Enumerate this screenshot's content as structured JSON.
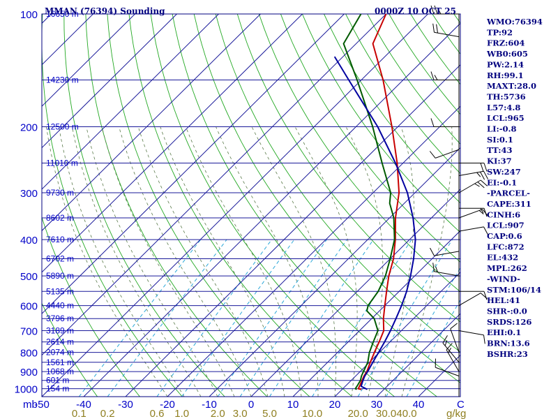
{
  "header": {
    "title": "MMAN (76394) Sounding",
    "time": "0000Z 10 OCT 25"
  },
  "chart_data": {
    "type": "line",
    "subtype": "skew-t log-p sounding",
    "pressure_axis": {
      "label": "mb",
      "ticks": [
        100,
        200,
        300,
        400,
        500,
        600,
        700,
        800,
        900,
        1000
      ],
      "range": [
        1050,
        100
      ],
      "scale": "log"
    },
    "temperature_axis": {
      "ticks": [
        -50,
        -40,
        -30,
        -20,
        -10,
        0,
        10,
        20,
        30,
        40
      ],
      "end_label": "C",
      "range": [
        -50,
        50
      ]
    },
    "mixing_ratio_axis": {
      "unit": "g/kg",
      "ticks": [
        "0.1",
        "0.2",
        "0.6",
        "1.0",
        "2.0",
        "3.0",
        "5.0",
        "10.0",
        "20.0",
        "30.0",
        "40.0"
      ]
    },
    "heights": [
      {
        "p": 100,
        "label": "16650 m"
      },
      {
        "p": 150,
        "label": "14230 m"
      },
      {
        "p": 200,
        "label": "12500 m"
      },
      {
        "p": 250,
        "label": "11010 m"
      },
      {
        "p": 300,
        "label": "9730 m"
      },
      {
        "p": 350,
        "label": "8602 m"
      },
      {
        "p": 400,
        "label": "7610 m"
      },
      {
        "p": 450,
        "label": "6702 m"
      },
      {
        "p": 500,
        "label": "5890 m"
      },
      {
        "p": 550,
        "label": "5135 m"
      },
      {
        "p": 600,
        "label": "4440 m"
      },
      {
        "p": 650,
        "label": "3796 m"
      },
      {
        "p": 700,
        "label": "3189 m"
      },
      {
        "p": 750,
        "label": "2614 m"
      },
      {
        "p": 800,
        "label": "2074 m"
      },
      {
        "p": 850,
        "label": "1561 m"
      },
      {
        "p": 900,
        "label": "1068 m"
      },
      {
        "p": 950,
        "label": "601 m"
      },
      {
        "p": 1000,
        "label": "154 m"
      }
    ],
    "series": [
      {
        "key": "temperature",
        "color": "#c80000",
        "points": [
          [
            1004,
            24.6
          ],
          [
            1000,
            23.7
          ],
          [
            985,
            23.4
          ],
          [
            950,
            22.6
          ],
          [
            925,
            22.0
          ],
          [
            900,
            21.6
          ],
          [
            850,
            20.2
          ],
          [
            800,
            18.8
          ],
          [
            750,
            17.4
          ],
          [
            700,
            15.8
          ],
          [
            650,
            12.8
          ],
          [
            600,
            10.0
          ],
          [
            550,
            7.0
          ],
          [
            500,
            3.8
          ],
          [
            450,
            0.8
          ],
          [
            400,
            -3.4
          ],
          [
            350,
            -8.6
          ],
          [
            300,
            -13.8
          ],
          [
            250,
            -21.4
          ],
          [
            200,
            -31.4
          ],
          [
            150,
            -44.8
          ],
          [
            120,
            -56.0
          ],
          [
            100,
            -60.0
          ]
        ]
      },
      {
        "key": "dewpoint",
        "color": "#005a00",
        "points": [
          [
            1004,
            23.5
          ],
          [
            1000,
            23.0
          ],
          [
            985,
            22.8
          ],
          [
            950,
            22.2
          ],
          [
            925,
            21.4
          ],
          [
            900,
            20.8
          ],
          [
            850,
            19.6
          ],
          [
            800,
            17.6
          ],
          [
            750,
            16.0
          ],
          [
            700,
            14.4
          ],
          [
            650,
            10.6
          ],
          [
            620,
            7.0
          ],
          [
            600,
            6.0
          ],
          [
            550,
            5.0
          ],
          [
            500,
            3.0
          ],
          [
            450,
            0.0
          ],
          [
            400,
            -3.6
          ],
          [
            350,
            -9.0
          ],
          [
            320,
            -13.5
          ],
          [
            300,
            -15.8
          ],
          [
            250,
            -25.0
          ],
          [
            200,
            -36.0
          ],
          [
            150,
            -51.0
          ],
          [
            120,
            -63.0
          ],
          [
            100,
            -66.0
          ]
        ]
      },
      {
        "key": "parcel",
        "color": "#0000a0",
        "points": [
          [
            1004,
            26.0
          ],
          [
            985,
            23.8
          ],
          [
            950,
            22.8
          ],
          [
            925,
            22.2
          ],
          [
            900,
            21.8
          ],
          [
            850,
            20.8
          ],
          [
            800,
            19.8
          ],
          [
            750,
            18.7
          ],
          [
            700,
            17.4
          ],
          [
            650,
            15.8
          ],
          [
            600,
            14.0
          ],
          [
            550,
            11.8
          ],
          [
            500,
            9.0
          ],
          [
            450,
            5.6
          ],
          [
            400,
            1.4
          ],
          [
            350,
            -4.4
          ],
          [
            300,
            -11.8
          ],
          [
            250,
            -21.8
          ],
          [
            200,
            -34.8
          ],
          [
            150,
            -53.0
          ],
          [
            130,
            -62.0
          ]
        ]
      }
    ]
  },
  "station_info": [
    "WMO:76394",
    "TP:92",
    "FRZ:604",
    "WB0:605",
    "PW:2.14",
    "RH:99.1",
    "MAXT:28.0",
    "TH:5736",
    "L57:4.8",
    "LCL:965",
    "LI:-0.8",
    "SI:0.1",
    "TT:43",
    "KI:37",
    "SW:247",
    "EI:-0.1",
    "-PARCEL-",
    "CAPE:311",
    "CINH:6",
    "LCL:907",
    "CAP:0.6",
    "LFC:872",
    "EL:432",
    "MPL:262",
    "-WIND-",
    "STM:106/14",
    "HEL:41",
    "SHR-:0.0",
    "SRDS:126",
    "EHI:0.1",
    "BRN:13.6",
    "BSHR:23"
  ],
  "wind_profile": [
    {
      "p": 100,
      "dir": 270,
      "spd": 25
    },
    {
      "p": 115,
      "dir": 280,
      "spd": 20
    },
    {
      "p": 150,
      "dir": 270,
      "spd": 15
    },
    {
      "p": 200,
      "dir": 270,
      "spd": 10
    },
    {
      "p": 230,
      "dir": 250,
      "spd": 10
    },
    {
      "p": 250,
      "dir": 90,
      "spd": 20
    },
    {
      "p": 270,
      "dir": 80,
      "spd": 25
    },
    {
      "p": 300,
      "dir": 60,
      "spd": 25
    },
    {
      "p": 330,
      "dir": 90,
      "spd": 15
    },
    {
      "p": 350,
      "dir": 70,
      "spd": 15
    },
    {
      "p": 380,
      "dir": 80,
      "spd": 10
    },
    {
      "p": 430,
      "dir": 260,
      "spd": 10
    },
    {
      "p": 500,
      "dir": 280,
      "spd": 15
    },
    {
      "p": 550,
      "dir": 90,
      "spd": 10
    },
    {
      "p": 600,
      "dir": 60,
      "spd": 10
    },
    {
      "p": 700,
      "dir": 100,
      "spd": 10
    },
    {
      "p": 800,
      "dir": 340,
      "spd": 10
    },
    {
      "p": 850,
      "dir": 320,
      "spd": 15
    },
    {
      "p": 900,
      "dir": 330,
      "spd": 15
    },
    {
      "p": 925,
      "dir": 290,
      "spd": 10
    }
  ]
}
